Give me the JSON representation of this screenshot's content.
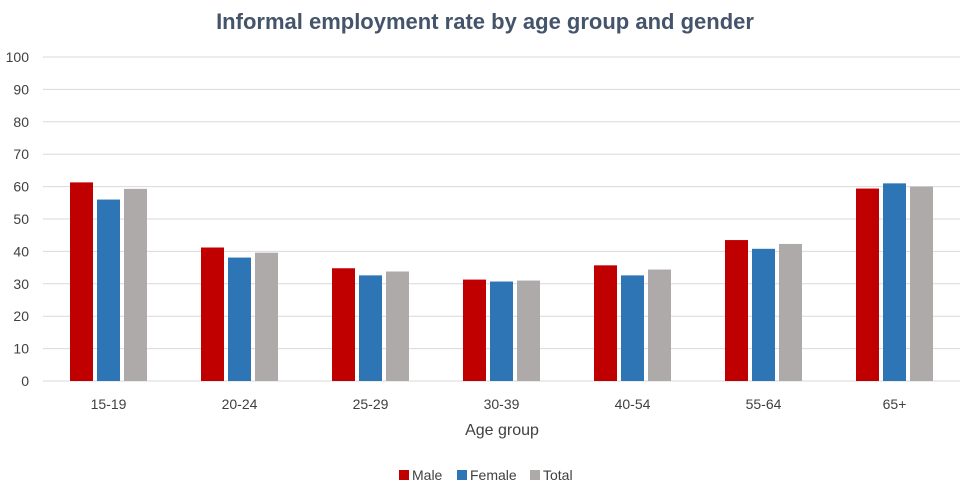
{
  "chart_data": {
    "type": "bar",
    "title": "Informal employment rate by age group and gender",
    "xlabel": "Age group",
    "ylabel": "",
    "ylim": [
      0,
      100
    ],
    "yticks": [
      0,
      10,
      20,
      30,
      40,
      50,
      60,
      70,
      80,
      90,
      100
    ],
    "grid": true,
    "legend_position": "bottom",
    "categories": [
      "15-19",
      "20-24",
      "25-29",
      "30-39",
      "40-54",
      "55-64",
      "65+"
    ],
    "series": [
      {
        "name": "Male",
        "color": "#c00000",
        "values": [
          61.3,
          41.2,
          34.8,
          31.3,
          35.7,
          43.5,
          59.4
        ]
      },
      {
        "name": "Female",
        "color": "#2e75b6",
        "values": [
          56.0,
          38.1,
          32.6,
          30.7,
          32.6,
          40.8,
          61.0
        ]
      },
      {
        "name": "Total",
        "color": "#aeaaaa",
        "values": [
          59.3,
          39.6,
          33.8,
          31.0,
          34.4,
          42.3,
          60.0
        ]
      }
    ]
  }
}
